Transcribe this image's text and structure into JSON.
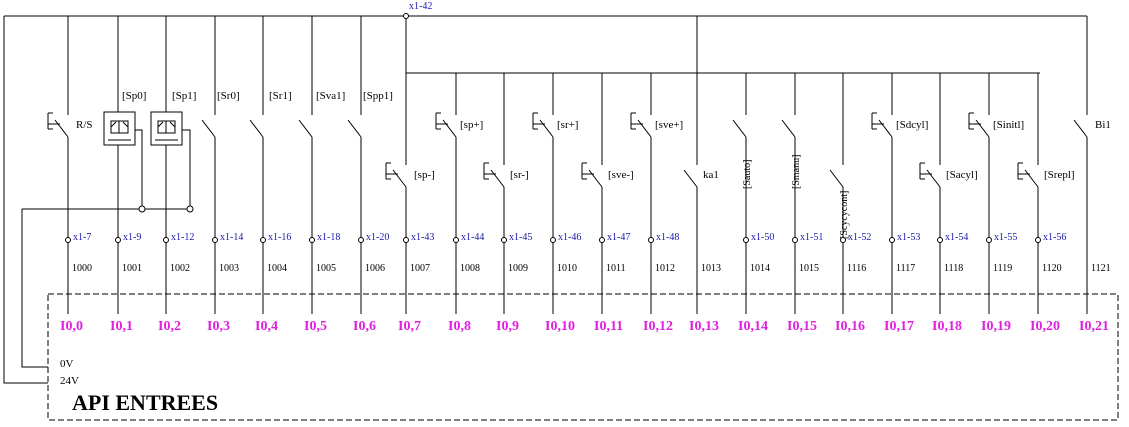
{
  "title": "API ENTREES",
  "bus_terminal": "x1-42",
  "supply": {
    "zero_v": "0V",
    "v24": "24V"
  },
  "channels": [
    {
      "label": "R/S",
      "terminal": "x1-7",
      "wire": "1000",
      "input": "I0,0"
    },
    {
      "label": "[Sp0]",
      "terminal": "x1-9",
      "wire": "1001",
      "input": "I0,1"
    },
    {
      "label": "[Sp1]",
      "terminal": "x1-12",
      "wire": "1002",
      "input": "I0,2"
    },
    {
      "label": "[Sr0]",
      "terminal": "x1-14",
      "wire": "1003",
      "input": "I0,3"
    },
    {
      "label": "[Sr1]",
      "terminal": "x1-16",
      "wire": "1004",
      "input": "I0,4"
    },
    {
      "label": "[Sva1]",
      "terminal": "x1-18",
      "wire": "1005",
      "input": "I0,5"
    },
    {
      "label": "[Spp1]",
      "terminal": "x1-20",
      "wire": "1006",
      "input": "I0,6"
    },
    {
      "label": "[sp-]",
      "terminal": "x1-43",
      "wire": "1007",
      "input": "I0,7"
    },
    {
      "label": "[sp+]",
      "terminal": "x1-44",
      "wire": "1008",
      "input": "I0,8"
    },
    {
      "label": "[sr-]",
      "terminal": "x1-45",
      "wire": "1009",
      "input": "I0,9"
    },
    {
      "label": "[sr+]",
      "terminal": "x1-46",
      "wire": "1010",
      "input": "I0,10"
    },
    {
      "label": "[sve-]",
      "terminal": "x1-47",
      "wire": "1011",
      "input": "I0,11"
    },
    {
      "label": "[sve+]",
      "terminal": "x1-48",
      "wire": "1012",
      "input": "I0,12"
    },
    {
      "label": "ka1",
      "terminal": "",
      "wire": "1013",
      "input": "I0,13"
    },
    {
      "label": "[Sauto]",
      "terminal": "x1-50",
      "wire": "1014",
      "input": "I0,14"
    },
    {
      "label": "[Smanu]",
      "terminal": "x1-51",
      "wire": "1015",
      "input": "I0,15"
    },
    {
      "label": "[Scycycont]",
      "terminal": "x1-52",
      "wire": "1116",
      "input": "I0,16"
    },
    {
      "label": "[Sdcyl]",
      "terminal": "x1-53",
      "wire": "1117",
      "input": "I0,17"
    },
    {
      "label": "[Sacyl]",
      "terminal": "x1-54",
      "wire": "1118",
      "input": "I0,18"
    },
    {
      "label": "[Sinitl]",
      "terminal": "x1-55",
      "wire": "1119",
      "input": "I0,19"
    },
    {
      "label": "[Srepl]",
      "terminal": "x1-56",
      "wire": "1120",
      "input": "I0,20"
    },
    {
      "label": "Bi1",
      "terminal": "",
      "wire": "1121",
      "input": "I0,21"
    }
  ]
}
